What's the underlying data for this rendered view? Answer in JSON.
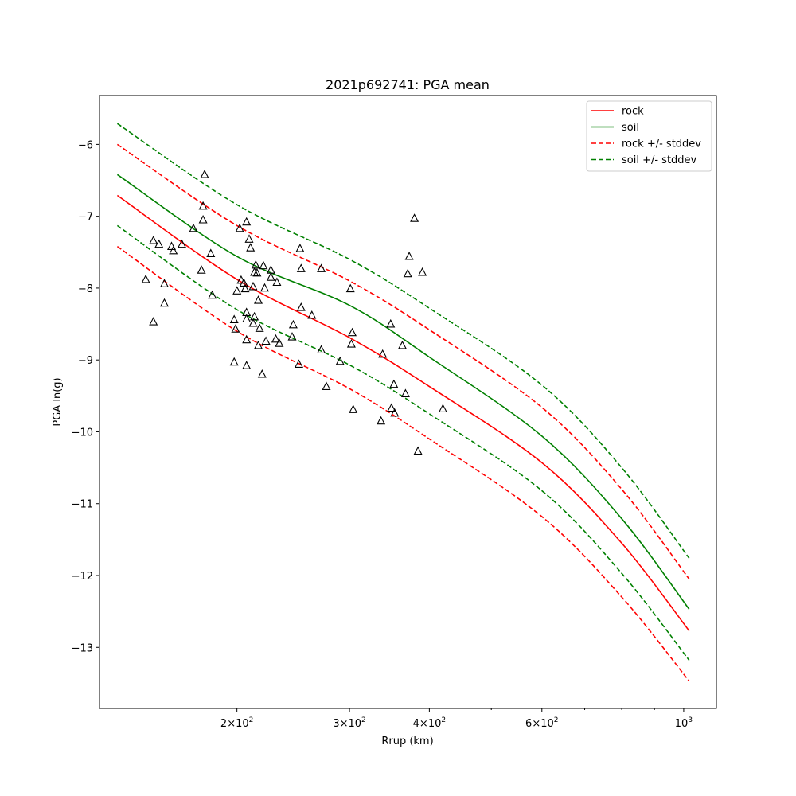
{
  "chart_data": {
    "type": "line",
    "title": "2021p692741: PGA mean",
    "xlabel": "Rrup (km)",
    "ylabel": "PGA ln(g)",
    "x_scale": "log",
    "xlim": [
      121.9,
      1125
    ],
    "ylim": [
      -13.85,
      -5.32
    ],
    "x_major_ticks": [
      {
        "value": 200,
        "label": "2 × 10^2"
      },
      {
        "value": 300,
        "label": "3 × 10^2"
      },
      {
        "value": 400,
        "label": "4 × 10^2"
      },
      {
        "value": 600,
        "label": "6 × 10^2"
      },
      {
        "value": 1000,
        "label": "10^3"
      }
    ],
    "x_minor_ticks": [
      500,
      700,
      800,
      900
    ],
    "y_ticks": [
      -6,
      -7,
      -8,
      -9,
      -10,
      -11,
      -12,
      -13
    ],
    "legend_position": "top-right",
    "series": [
      {
        "name": "rock",
        "style": "solid",
        "color": "#ff0000",
        "x": [
          130,
          200,
          300,
          400,
          600,
          800,
          1020
        ],
        "y": [
          -6.71,
          -7.88,
          -8.69,
          -9.37,
          -10.43,
          -11.55,
          -12.77
        ]
      },
      {
        "name": "soil",
        "style": "solid",
        "color": "#008000",
        "x": [
          130,
          200,
          300,
          400,
          600,
          800,
          1020
        ],
        "y": [
          -6.42,
          -7.56,
          -8.24,
          -8.96,
          -10.06,
          -11.21,
          -12.47
        ]
      },
      {
        "name": "rock +/- stddev",
        "style": "dashed",
        "color": "#ff0000",
        "x": [
          130,
          200,
          300,
          400,
          600,
          800,
          1020
        ],
        "y": [
          -6.0,
          -7.13,
          -7.9,
          -8.58,
          -9.66,
          -10.8,
          -12.05
        ]
      },
      {
        "name": "",
        "style": "dashed",
        "color": "#ff0000",
        "x": [
          130,
          200,
          300,
          400,
          600,
          800,
          1020
        ],
        "y": [
          -7.42,
          -8.6,
          -9.4,
          -10.1,
          -11.18,
          -12.3,
          -13.47
        ]
      },
      {
        "name": "soil +/- stddev",
        "style": "dashed",
        "color": "#008000",
        "x": [
          130,
          200,
          300,
          400,
          600,
          800,
          1020
        ],
        "y": [
          -5.71,
          -6.84,
          -7.6,
          -8.28,
          -9.35,
          -10.5,
          -11.76
        ]
      },
      {
        "name": "",
        "style": "dashed",
        "color": "#008000",
        "x": [
          130,
          200,
          300,
          400,
          600,
          800,
          1020
        ],
        "y": [
          -7.13,
          -8.3,
          -9.07,
          -9.75,
          -10.82,
          -11.97,
          -13.18
        ]
      }
    ],
    "observations": {
      "marker": "open-triangle",
      "color": "#000000",
      "points": [
        [
          148,
          -7.34
        ],
        [
          151,
          -7.39
        ],
        [
          144,
          -7.88
        ],
        [
          154,
          -7.94
        ],
        [
          154,
          -8.21
        ],
        [
          148,
          -8.47
        ],
        [
          158,
          -7.42
        ],
        [
          159,
          -7.48
        ],
        [
          164,
          -7.39
        ],
        [
          171,
          -7.17
        ],
        [
          177,
          -6.86
        ],
        [
          178,
          -6.42
        ],
        [
          177,
          -7.05
        ],
        [
          176,
          -7.75
        ],
        [
          182,
          -7.52
        ],
        [
          183,
          -8.1
        ],
        [
          198,
          -8.44
        ],
        [
          199,
          -8.57
        ],
        [
          198,
          -9.03
        ],
        [
          200,
          -8.04
        ],
        [
          202,
          -7.17
        ],
        [
          203,
          -7.89
        ],
        [
          205,
          -7.93
        ],
        [
          206,
          -8.01
        ],
        [
          207,
          -7.08
        ],
        [
          209,
          -7.32
        ],
        [
          210,
          -7.44
        ],
        [
          207,
          -8.34
        ],
        [
          207,
          -8.43
        ],
        [
          207,
          -8.72
        ],
        [
          207,
          -9.08
        ],
        [
          212,
          -7.98
        ],
        [
          212,
          -8.49
        ],
        [
          213,
          -8.4
        ],
        [
          214,
          -7.68
        ],
        [
          213,
          -7.78
        ],
        [
          215,
          -7.79
        ],
        [
          216,
          -8.17
        ],
        [
          217,
          -8.56
        ],
        [
          216,
          -8.8
        ],
        [
          220,
          -7.69
        ],
        [
          221,
          -8.0
        ],
        [
          219,
          -9.2
        ],
        [
          222,
          -8.74
        ],
        [
          226,
          -7.75
        ],
        [
          226,
          -7.85
        ],
        [
          231,
          -7.92
        ],
        [
          230,
          -8.71
        ],
        [
          233,
          -8.77
        ],
        [
          244,
          -8.68
        ],
        [
          245,
          -8.51
        ],
        [
          251,
          -7.45
        ],
        [
          252,
          -7.73
        ],
        [
          252,
          -8.27
        ],
        [
          250,
          -9.06
        ],
        [
          262,
          -8.38
        ],
        [
          271,
          -7.73
        ],
        [
          271,
          -8.86
        ],
        [
          276,
          -9.37
        ],
        [
          290,
          -9.02
        ],
        [
          301,
          -8.01
        ],
        [
          303,
          -8.62
        ],
        [
          302,
          -8.78
        ],
        [
          304,
          -9.69
        ],
        [
          338,
          -8.92
        ],
        [
          336,
          -9.85
        ],
        [
          348,
          -8.5
        ],
        [
          349,
          -9.67
        ],
        [
          352,
          -9.34
        ],
        [
          353,
          -9.74
        ],
        [
          363,
          -8.8
        ],
        [
          367,
          -9.47
        ],
        [
          370,
          -7.8
        ],
        [
          372,
          -7.56
        ],
        [
          379,
          -7.03
        ],
        [
          384,
          -10.27
        ],
        [
          390,
          -7.78
        ],
        [
          420,
          -9.68
        ]
      ]
    }
  }
}
